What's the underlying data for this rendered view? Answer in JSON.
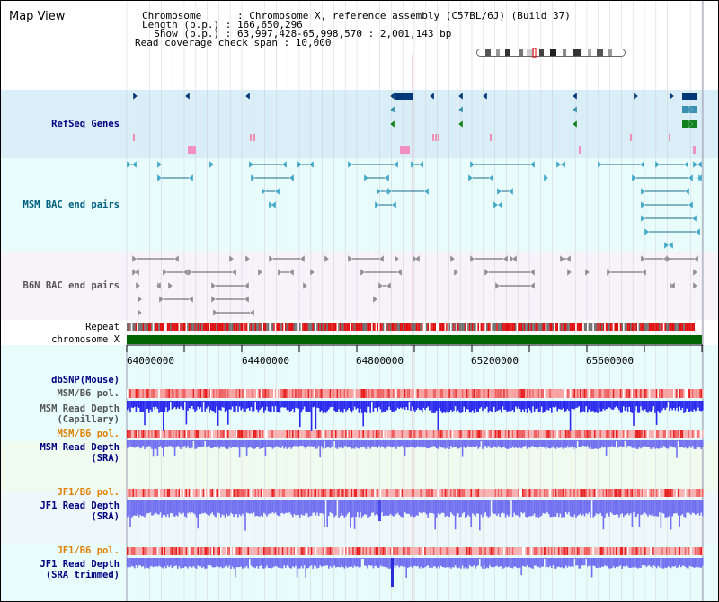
{
  "title": "Map View",
  "info": {
    "chromosome": "Chromosome      : Chromosome X, reference assembly (C57BL/6J) (Build 37)",
    "length": "Length (b.p.) : 166,650,296",
    "show": "  Show (b.p.) : 63,997,428-65,998,570 : 2,001,143 bp",
    "coverage": "Read coverage check span : 10,000"
  },
  "labels": {
    "refseq": "RefSeq Genes",
    "msm_bac": "MSM BAC end pairs",
    "b6n_bac": "B6N BAC end pairs",
    "repeat": "Repeat",
    "chromosome": "chromosome X",
    "dbsnp": "dbSNP(Mouse)",
    "msm_b6_pol_1": "MSM/B6 pol.",
    "msm_depth_cap_1": "MSM Read Depth",
    "msm_depth_cap_2": "(Capillary)",
    "msm_b6_pol_2": "MSM/B6 pol.",
    "msm_depth_sra_1": "MSM Read Depth",
    "msm_depth_sra_2": "(SRA)",
    "jf1_pol_1": "JF1/B6 pol.",
    "jf1_depth_1": "JF1 Read Depth",
    "jf1_depth_2": "(SRA)",
    "jf1_pol_2": "JF1/B6 pol.",
    "jf1_trim_1": "JF1 Read Depth",
    "jf1_trim_2": "(SRA trimmed)"
  },
  "axis": {
    "ticks": [
      "64000000",
      "64400000",
      "64800000",
      "65200000",
      "65600000"
    ]
  },
  "colors": {
    "refseq_bg": "#daeef8",
    "msm_bg": "#e8fcfc",
    "b6n_bg": "#f6f4f8",
    "grid": "#c8c8d0",
    "gene": "#003878",
    "msm_pair": "#1a6a8a",
    "b6n_pair": "#707070",
    "chrom_bar": "#006400",
    "pol": "#f08080",
    "depth_msm_cap": "#2a2aee",
    "depth_sra": "#7070f0",
    "label_navy": "#000080",
    "label_orange": "#e08000",
    "bottom_bg": "#e8fcfc",
    "sra_bg": "#f0fbf0"
  }
}
